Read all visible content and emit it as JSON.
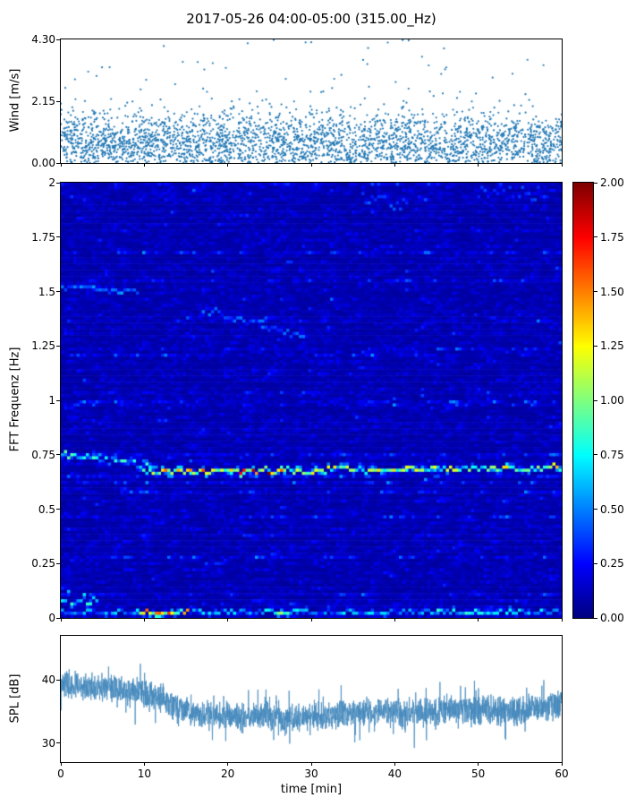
{
  "title": "2017-05-26 04:00-05:00 (315.00_Hz)",
  "colors": {
    "scatter_marker": "#2077b4",
    "spl_line": "#4589bd",
    "axis": "#000000",
    "background": "#ffffff",
    "colormap": "jet"
  },
  "chart_data": [
    {
      "type": "scatter",
      "name": "wind-speed",
      "ylabel": "Wind [m/s]",
      "xlim": [
        0,
        60
      ],
      "ylim": [
        0.0,
        4.3
      ],
      "ytick_values": [
        4.3,
        2.15,
        0.0
      ],
      "ytick_labels": [
        "4.30",
        "2.15",
        "0.00"
      ],
      "n_points": 3000,
      "distribution": {
        "base_mean": 0.72,
        "base_sigma": 0.5,
        "tail_prob": 0.07,
        "tail_scale": 0.55,
        "max": 4.3
      },
      "marker_size": 1.1,
      "seed": 42
    },
    {
      "type": "heatmap",
      "name": "fft-spectrogram",
      "ylabel": "FFT Frequenz [Hz]",
      "xlim": [
        0,
        60
      ],
      "ylim": [
        0,
        2
      ],
      "ytick_values": [
        2,
        1.75,
        1.5,
        1.25,
        1,
        0.75,
        0.5,
        0.25,
        0
      ],
      "ytick_labels": [
        "2",
        "1.75",
        "1.5",
        "1.25",
        "1",
        "0.75",
        "0.5",
        "0.25",
        "0"
      ],
      "clim": [
        0.0,
        2.0
      ],
      "colorbar_tick_values": [
        2.0,
        1.75,
        1.5,
        1.25,
        1.0,
        0.75,
        0.5,
        0.25,
        0.0
      ],
      "colorbar_tick_labels": [
        "2.00",
        "1.75",
        "1.50",
        "1.25",
        "1.00",
        "0.75",
        "0.50",
        "0.25",
        "0.00"
      ],
      "grid": {
        "cols": 160,
        "rows": 140
      },
      "background_noise": {
        "base": 0.05,
        "scale": 0.08,
        "row_streak_prob": 0.18,
        "max": 0.55
      },
      "features": [
        {
          "name": "tonal-band-lead-in",
          "x0": 0,
          "x1": 11,
          "y0": 0.755,
          "y1": 0.7,
          "imin": 0.35,
          "imax": 0.95,
          "jitter": 0.015
        },
        {
          "name": "tonal-band-main",
          "x0": 10,
          "x1": 60,
          "y0": 0.672,
          "y1": 0.69,
          "imin": 0.55,
          "imax": 1.35,
          "jitter": 0.012,
          "hotspots": [
            {
              "x0": 12,
              "x1": 20,
              "imin": 0.7,
              "imax": 1.6
            },
            {
              "x0": 20.5,
              "x1": 27,
              "imin": 0.9,
              "imax": 2.0
            },
            {
              "x0": 55,
              "x1": 60,
              "imin": 0.7,
              "imax": 1.4
            }
          ]
        },
        {
          "name": "near-surface-band",
          "x0": 0,
          "x1": 60,
          "y0": 0.025,
          "y1": 0.025,
          "imin": 0.25,
          "imax": 0.75,
          "jitter": 0.01,
          "hotspots": [
            {
              "x0": 9.5,
              "x1": 15.5,
              "imin": 0.8,
              "imax": 1.7
            },
            {
              "x0": 25,
              "x1": 29,
              "imin": 0.5,
              "imax": 1.1
            },
            {
              "x0": 45,
              "x1": 52,
              "imin": 0.4,
              "imax": 0.9
            }
          ]
        },
        {
          "name": "faint-line-1.5Hz",
          "x0": 0,
          "x1": 9,
          "y0": 1.52,
          "y1": 1.5,
          "imin": 0.3,
          "imax": 0.6,
          "jitter": 0.01
        },
        {
          "name": "faint-descending-trace",
          "x0": 17,
          "x1": 29,
          "y0": 1.42,
          "y1": 1.3,
          "imin": 0.25,
          "imax": 0.5,
          "jitter": 0.02
        },
        {
          "name": "low-freq-specks",
          "x0": 0,
          "x1": 4,
          "y0": 0.1,
          "y1": 0.08,
          "imin": 0.4,
          "imax": 0.9,
          "jitter": 0.03
        },
        {
          "name": "upper-patch-1",
          "x0": 36,
          "x1": 41,
          "y0": 1.93,
          "y1": 1.9,
          "imin": 0.25,
          "imax": 0.45,
          "jitter": 0.03
        },
        {
          "name": "upper-patch-2",
          "x0": 50,
          "x1": 58,
          "y0": 1.94,
          "y1": 1.95,
          "imin": 0.2,
          "imax": 0.4,
          "jitter": 0.04
        }
      ],
      "seed": 7
    },
    {
      "type": "line",
      "name": "spl",
      "ylabel": "SPL [dB]",
      "xlabel": "time [min]",
      "xlim": [
        0,
        60
      ],
      "ylim": [
        27,
        47
      ],
      "ytick_values": [
        40,
        30
      ],
      "ytick_labels": [
        "40",
        "30"
      ],
      "xtick_values": [
        0,
        10,
        20,
        30,
        40,
        50,
        60
      ],
      "xtick_labels": [
        "0",
        "10",
        "20",
        "30",
        "40",
        "50",
        "60"
      ],
      "n_points": 2600,
      "baseline": [
        [
          0,
          39.5
        ],
        [
          3,
          39.0
        ],
        [
          6,
          38.6
        ],
        [
          10,
          38.0
        ],
        [
          12,
          37.2
        ],
        [
          14,
          35.5
        ],
        [
          16,
          34.6
        ],
        [
          20,
          34.2
        ],
        [
          24,
          34.6
        ],
        [
          27,
          33.6
        ],
        [
          30,
          34.4
        ],
        [
          33,
          34.3
        ],
        [
          36,
          34.8
        ],
        [
          38,
          35.2
        ],
        [
          41,
          34.6
        ],
        [
          45,
          35.0
        ],
        [
          49,
          35.3
        ],
        [
          52,
          35.2
        ],
        [
          55,
          35.0
        ],
        [
          58,
          35.8
        ],
        [
          60,
          36.2
        ]
      ],
      "noise_amp": 2.0,
      "spike_prob": 0.06,
      "spike_amp": 4.0,
      "seed": 13
    }
  ]
}
